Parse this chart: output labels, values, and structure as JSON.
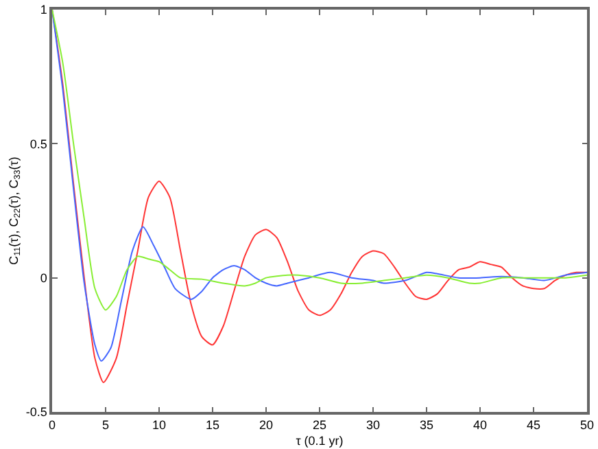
{
  "chart_data": {
    "type": "line",
    "xlabel": "τ (0.1 yr)",
    "ylabel": "C$_{11}$(τ), C$_{22}$(τ), C$_{33}$(τ)",
    "xlim": [
      0,
      50
    ],
    "xticks": [
      0,
      5,
      10,
      15,
      20,
      25,
      30,
      35,
      40,
      45,
      50
    ],
    "ylim": [
      -0.5,
      1
    ],
    "yticks": [
      -0.5,
      0,
      0.5,
      1
    ],
    "grid": false,
    "marker": "none",
    "line_style": "solid",
    "series": [
      {
        "color": "#ff3333",
        "x": [
          0,
          1,
          2,
          3,
          4,
          4.8,
          6,
          7,
          8,
          9,
          10,
          11,
          12,
          13,
          14,
          15,
          16,
          17,
          18,
          19,
          20,
          21,
          22,
          23,
          24,
          25,
          26,
          27,
          28,
          29,
          30,
          31,
          32,
          33,
          34,
          35,
          36,
          37,
          38,
          39,
          40,
          41,
          42,
          43,
          44,
          45,
          46,
          47,
          48,
          49,
          50
        ],
        "values": [
          1,
          0.72,
          0.35,
          0,
          -0.3,
          -0.39,
          -0.3,
          -0.1,
          0.1,
          0.3,
          0.36,
          0.3,
          0.1,
          -0.1,
          -0.22,
          -0.25,
          -0.18,
          -0.05,
          0.08,
          0.16,
          0.18,
          0.15,
          0.06,
          -0.05,
          -0.12,
          -0.14,
          -0.12,
          -0.06,
          0.02,
          0.08,
          0.1,
          0.09,
          0.04,
          -0.02,
          -0.07,
          -0.08,
          -0.06,
          -0.01,
          0.03,
          0.04,
          0.06,
          0.05,
          0.04,
          0,
          -0.03,
          -0.04,
          -0.04,
          -0.01,
          0.01,
          0.02,
          0.02
        ]
      },
      {
        "color": "#4466ff",
        "x": [
          0,
          1,
          2,
          3,
          4,
          4.6,
          5.5,
          6.5,
          7.5,
          8.5,
          9.5,
          10.5,
          11.5,
          13,
          14,
          15,
          16,
          17,
          18,
          19,
          20,
          21,
          22,
          23,
          24,
          26,
          28,
          30,
          31,
          33,
          35,
          36,
          38,
          40,
          42,
          44,
          46,
          48,
          50
        ],
        "values": [
          1,
          0.7,
          0.33,
          -0.02,
          -0.25,
          -0.31,
          -0.26,
          -0.08,
          0.1,
          0.19,
          0.12,
          0.04,
          -0.04,
          -0.08,
          -0.05,
          0,
          0.03,
          0.045,
          0.03,
          0,
          -0.02,
          -0.03,
          -0.02,
          -0.01,
          0,
          0.02,
          0,
          -0.01,
          -0.02,
          -0.01,
          0.02,
          0.015,
          0,
          0,
          0.005,
          0,
          -0.01,
          0.01,
          0.02
        ]
      },
      {
        "color": "#88ee33",
        "x": [
          0,
          1,
          2,
          3,
          4,
          5,
          6,
          7,
          8,
          9,
          10,
          11,
          12,
          14,
          16,
          18,
          19,
          20,
          22,
          23,
          25,
          27,
          29,
          31,
          33,
          35,
          37,
          39,
          40,
          42,
          44,
          46,
          48,
          50
        ],
        "values": [
          1,
          0.8,
          0.5,
          0.22,
          -0.04,
          -0.12,
          -0.07,
          0.03,
          0.08,
          0.07,
          0.06,
          0.03,
          0,
          -0.005,
          -0.02,
          -0.03,
          -0.02,
          0,
          0.01,
          0.01,
          0,
          -0.02,
          -0.02,
          -0.01,
          0,
          0.01,
          0,
          -0.02,
          -0.02,
          0,
          0,
          0,
          0,
          0.01
        ]
      }
    ]
  }
}
